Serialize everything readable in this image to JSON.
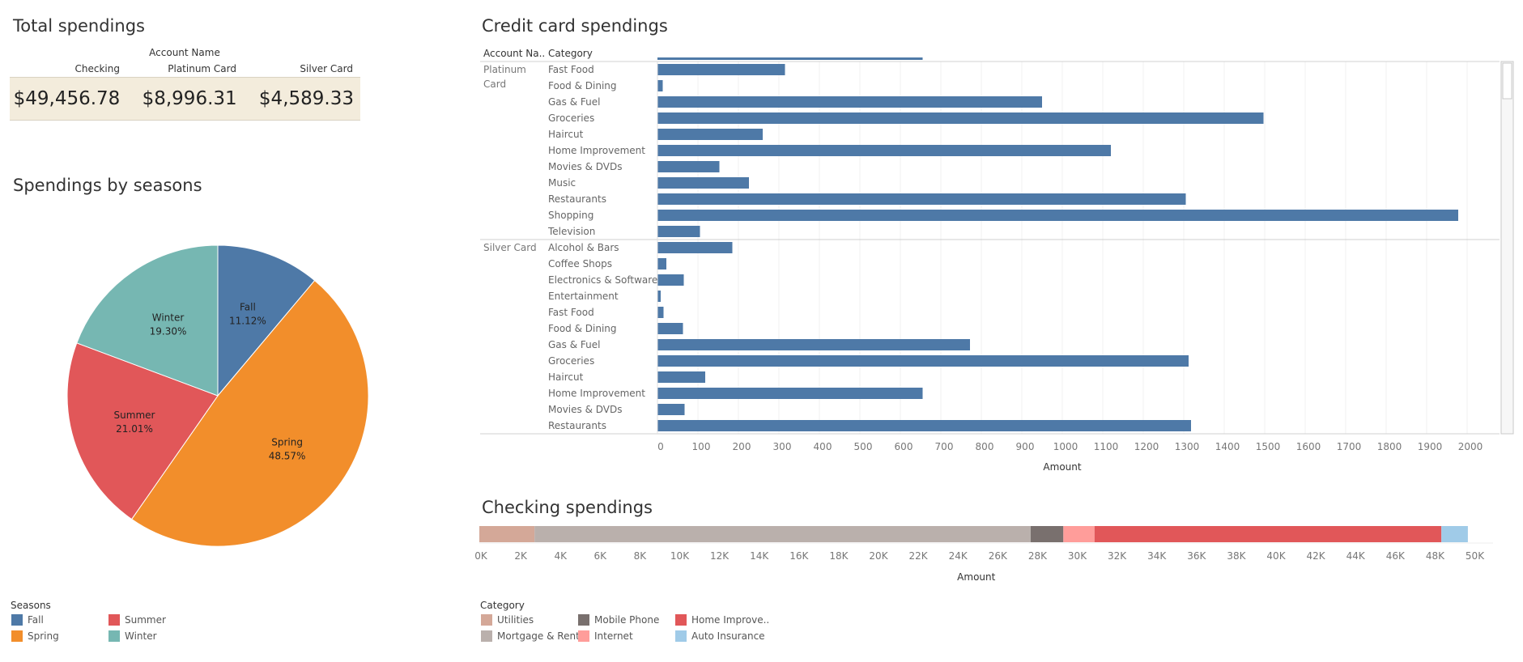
{
  "total_spendings": {
    "title": "Total spendings",
    "group_header": "Account Name",
    "columns": [
      "Checking",
      "Platinum Card",
      "Silver Card"
    ],
    "values": [
      "$49,456.78",
      "$8,996.31",
      "$4,589.33"
    ]
  },
  "seasons": {
    "title": "Spendings by seasons",
    "legend_title": "Seasons",
    "legend": [
      {
        "label": "Fall",
        "color": "#4e79a7"
      },
      {
        "label": "Summer",
        "color": "#e15759"
      },
      {
        "label": "Spring",
        "color": "#f28e2b"
      },
      {
        "label": "Winter",
        "color": "#76b7b2"
      }
    ]
  },
  "credit": {
    "title": "Credit card spendings",
    "row_header_account": "Account Na..",
    "row_header_category": "Category",
    "x_axis_label": "Amount",
    "bar_color": "#4e79a7"
  },
  "checking": {
    "title": "Checking spendings",
    "x_axis_label": "Amount",
    "legend_title": "Category",
    "legend": [
      {
        "label": "Utilities",
        "color": "#d4a898"
      },
      {
        "label": "Mobile Phone",
        "color": "#79706e"
      },
      {
        "label": "Home Improve..",
        "color": "#e15759"
      },
      {
        "label": "Mortgage & Rent",
        "color": "#bab0ac"
      },
      {
        "label": "Internet",
        "color": "#ff9d9a"
      },
      {
        "label": "Auto Insurance",
        "color": "#a0cbe8"
      }
    ]
  },
  "chart_data": [
    {
      "type": "pie",
      "title": "Spendings by seasons",
      "categories": [
        "Fall",
        "Spring",
        "Summer",
        "Winter"
      ],
      "values": [
        11.12,
        48.57,
        21.01,
        19.3
      ],
      "labels": [
        "11.12%",
        "48.57%",
        "21.01%",
        "19.30%"
      ],
      "colors": [
        "#4e79a7",
        "#f28e2b",
        "#e15759",
        "#76b7b2"
      ],
      "legend_title": "Seasons"
    },
    {
      "type": "bar",
      "orientation": "horizontal",
      "title": "Credit card spendings",
      "xlabel": "Amount",
      "xlim": [
        0,
        2070
      ],
      "x_ticks": [
        0,
        100,
        200,
        300,
        400,
        500,
        600,
        700,
        800,
        900,
        1000,
        1100,
        1200,
        1300,
        1400,
        1500,
        1600,
        1700,
        1800,
        1900,
        2000
      ],
      "groups": [
        {
          "name": "Platinum Card",
          "name_lines": [
            "Platinum",
            "Card"
          ],
          "categories": [
            "Fast Food",
            "Food & Dining",
            "Gas & Fuel",
            "Groceries",
            "Haircut",
            "Home Improvement",
            "Movies & DVDs",
            "Music",
            "Restaurants",
            "Shopping",
            "Television"
          ],
          "values": [
            315,
            13,
            950,
            1497,
            260,
            1120,
            153,
            226,
            1305,
            1978,
            105
          ]
        },
        {
          "name": "Silver Card",
          "name_lines": [
            "Silver Card"
          ],
          "categories": [
            "Alcohol & Bars",
            "Coffee Shops",
            "Electronics & Software",
            "Entertainment",
            "Fast Food",
            "Food & Dining",
            "Gas & Fuel",
            "Groceries",
            "Haircut",
            "Home Improvement",
            "Movies & DVDs",
            "Restaurants"
          ],
          "values": [
            185,
            22,
            65,
            8,
            15,
            63,
            772,
            1312,
            118,
            655,
            67,
            1318
          ]
        }
      ],
      "partial_top_bar": 655
    },
    {
      "type": "bar",
      "orientation": "horizontal",
      "stacked": true,
      "title": "Checking spendings",
      "xlabel": "Amount",
      "xlim": [
        0,
        51000
      ],
      "x_tick_labels": [
        "0K",
        "2K",
        "4K",
        "6K",
        "8K",
        "10K",
        "12K",
        "14K",
        "16K",
        "18K",
        "20K",
        "22K",
        "24K",
        "26K",
        "28K",
        "30K",
        "32K",
        "34K",
        "36K",
        "38K",
        "40K",
        "42K",
        "44K",
        "46K",
        "48K",
        "50K"
      ],
      "x_ticks": [
        0,
        2000,
        4000,
        6000,
        8000,
        10000,
        12000,
        14000,
        16000,
        18000,
        20000,
        22000,
        24000,
        26000,
        28000,
        30000,
        32000,
        34000,
        36000,
        38000,
        40000,
        42000,
        44000,
        46000,
        48000,
        50000
      ],
      "series": [
        {
          "name": "Utilities",
          "value": 2780,
          "color": "#d4a898"
        },
        {
          "name": "Mortgage & Rent",
          "value": 24950,
          "color": "#bab0ac"
        },
        {
          "name": "Mobile Phone",
          "value": 1650,
          "color": "#79706e"
        },
        {
          "name": "Internet",
          "value": 1570,
          "color": "#ff9d9a"
        },
        {
          "name": "Home Improve..",
          "value": 17450,
          "color": "#e15759"
        },
        {
          "name": "Auto Insurance",
          "value": 1330,
          "color": "#a0cbe8"
        }
      ]
    }
  ]
}
